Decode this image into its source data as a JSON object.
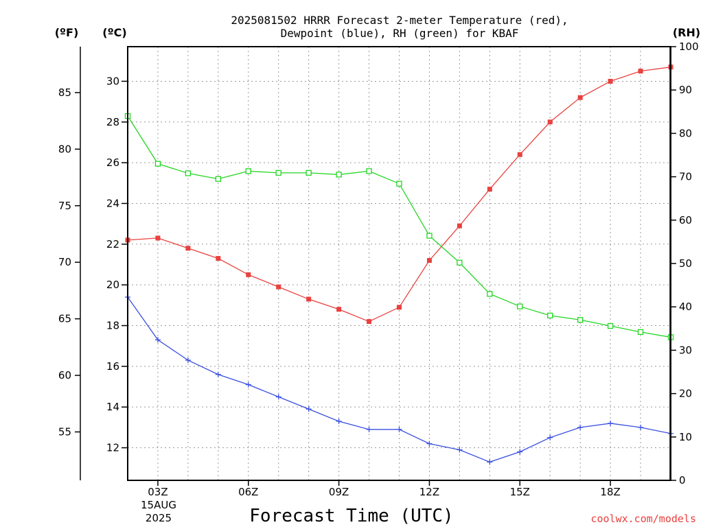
{
  "chart_data": {
    "type": "line",
    "title_line1": "2025081502 HRRR Forecast 2-meter Temperature (red),",
    "title_line2": "Dewpoint (blue), RH (green) for KBAF",
    "xlabel": "Forecast Time (UTC)",
    "credit": "coolwx.com/models",
    "unit_f": "(ºF)",
    "unit_c": "(ºC)",
    "unit_rh": "(RH)",
    "date_line1": "15AUG",
    "date_line2": "2025",
    "x_hours": [
      2,
      3,
      4,
      5,
      6,
      7,
      8,
      9,
      10,
      11,
      12,
      13,
      14,
      15,
      16,
      17,
      18,
      19,
      20
    ],
    "x_ticks": [
      {
        "hour": 3,
        "label": "03Z"
      },
      {
        "hour": 6,
        "label": "06Z"
      },
      {
        "hour": 9,
        "label": "09Z"
      },
      {
        "hour": 12,
        "label": "12Z"
      },
      {
        "hour": 15,
        "label": "15Z"
      },
      {
        "hour": 18,
        "label": "18Z"
      }
    ],
    "x_range": [
      2,
      20
    ],
    "celsius_range": [
      10.4,
      31.7
    ],
    "celsius_ticks": [
      12,
      14,
      16,
      18,
      20,
      22,
      24,
      26,
      28,
      30
    ],
    "fahrenheit_ticks": [
      55,
      60,
      65,
      70,
      75,
      80,
      85
    ],
    "rh_range": [
      0,
      100
    ],
    "rh_ticks": [
      0,
      10,
      20,
      30,
      40,
      50,
      60,
      70,
      80,
      90,
      100
    ],
    "grid": true,
    "series": [
      {
        "name": "Temperature (red)",
        "axis": "celsius",
        "color": "#e8413e",
        "marker": "filled-square",
        "values": [
          22.2,
          22.3,
          21.8,
          21.3,
          20.5,
          19.9,
          19.3,
          18.8,
          18.2,
          18.9,
          21.2,
          22.9,
          24.7,
          26.4,
          28.0,
          29.2,
          30.0,
          30.5,
          30.7
        ]
      },
      {
        "name": "Dewpoint (blue)",
        "axis": "celsius",
        "color": "#3a4fe0",
        "marker": "plus",
        "values": [
          19.4,
          17.3,
          16.3,
          15.6,
          15.1,
          14.5,
          13.9,
          13.3,
          12.9,
          12.9,
          12.2,
          11.9,
          11.3,
          11.8,
          12.5,
          13.0,
          13.2,
          13.0,
          12.7
        ]
      },
      {
        "name": "RH (green)",
        "axis": "rh",
        "color": "#22d622",
        "marker": "open-square",
        "values": [
          84.0,
          73.0,
          70.8,
          69.5,
          71.3,
          70.9,
          70.9,
          70.5,
          71.3,
          68.4,
          56.4,
          50.2,
          43.0,
          40.1,
          38.0,
          37.0,
          35.6,
          34.2,
          33.0
        ]
      }
    ]
  }
}
